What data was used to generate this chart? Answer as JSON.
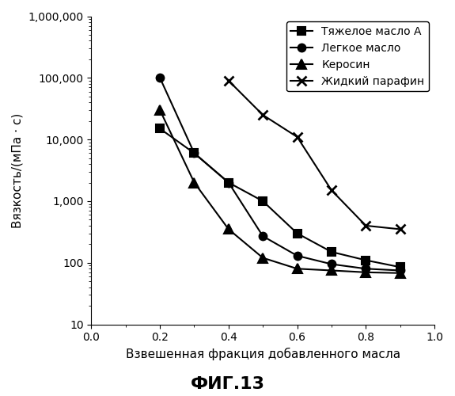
{
  "title": "ФИГ.13",
  "xlabel": "Взвешенная фракция добавленного масла",
  "ylabel": "Вязкость/(мПа · с)",
  "xlim": [
    0,
    1.0
  ],
  "ylim": [
    10,
    1000000
  ],
  "xticks": [
    0,
    0.2,
    0.4,
    0.6,
    0.8,
    1.0
  ],
  "series": [
    {
      "label": "Тяжелое масло А",
      "marker": "s",
      "markersize": 7,
      "markerfacecolor": "black",
      "markeredgewidth": 1.5,
      "x": [
        0.2,
        0.3,
        0.4,
        0.5,
        0.6,
        0.7,
        0.8,
        0.9
      ],
      "y": [
        15000,
        6000,
        2000,
        1000,
        300,
        150,
        110,
        85
      ]
    },
    {
      "label": "Легкое масло",
      "marker": "o",
      "markersize": 7,
      "markerfacecolor": "black",
      "markeredgewidth": 1.5,
      "x": [
        0.2,
        0.3,
        0.4,
        0.5,
        0.6,
        0.7,
        0.8,
        0.9
      ],
      "y": [
        100000,
        6000,
        2000,
        270,
        130,
        95,
        80,
        75
      ]
    },
    {
      "label": "Керосин",
      "marker": "^",
      "markersize": 8,
      "markerfacecolor": "black",
      "markeredgewidth": 1.5,
      "x": [
        0.2,
        0.3,
        0.4,
        0.5,
        0.6,
        0.7,
        0.8,
        0.9
      ],
      "y": [
        30000,
        2000,
        350,
        120,
        80,
        75,
        70,
        68
      ]
    },
    {
      "label": "Жидкий парафин",
      "marker": "x",
      "markersize": 9,
      "markerfacecolor": "none",
      "markeredgewidth": 2.0,
      "x": [
        0.4,
        0.5,
        0.6,
        0.7,
        0.8,
        0.9
      ],
      "y": [
        90000,
        25000,
        11000,
        1500,
        400,
        350
      ]
    }
  ],
  "background_color": "#ffffff",
  "legend_fontsize": 10,
  "axis_fontsize": 11,
  "title_fontsize": 16
}
